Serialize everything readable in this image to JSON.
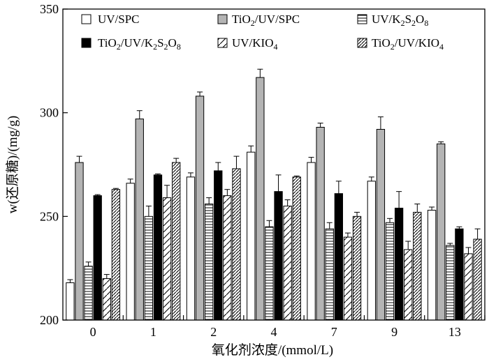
{
  "chart_data": {
    "type": "bar",
    "title": "",
    "xlabel": "氧化剂浓度/(mmol/L)",
    "ylabel": "w(还原糖)/(mg/g)",
    "ylim": [
      200,
      350
    ],
    "yticks": [
      200,
      250,
      300,
      350
    ],
    "categories": [
      "0",
      "1",
      "2",
      "4",
      "7",
      "9",
      "13"
    ],
    "legend_placement": "top",
    "series": [
      {
        "name": "UV/SPC",
        "key": "uv_spc",
        "values": [
          218,
          266,
          269,
          281,
          276,
          267,
          253
        ],
        "errors": [
          1.5,
          2,
          2,
          3,
          2.5,
          2,
          1.5
        ]
      },
      {
        "name": "TiO2/UV/SPC",
        "key": "tio2_uv_spc",
        "values": [
          276,
          297,
          308,
          317,
          293,
          292,
          285
        ],
        "errors": [
          3,
          4,
          2,
          4,
          2,
          6,
          1
        ]
      },
      {
        "name": "UV/K2S2O8",
        "key": "uv_k2s2o8",
        "values": [
          226,
          250,
          256,
          245,
          244,
          247,
          236
        ],
        "errors": [
          2,
          5,
          3,
          3,
          3,
          2,
          1
        ]
      },
      {
        "name": "TiO2/UV/K2S2O8",
        "key": "tio2_uv_k2s2o8",
        "values": [
          260,
          270,
          272,
          262,
          261,
          254,
          244
        ],
        "errors": [
          0.5,
          0.5,
          4,
          8,
          6,
          8,
          1
        ]
      },
      {
        "name": "UV/KIO4",
        "key": "uv_kio4",
        "values": [
          220,
          259,
          260,
          255,
          240,
          234,
          232
        ],
        "errors": [
          2,
          6,
          3,
          3,
          2,
          4,
          3
        ]
      },
      {
        "name": "TiO2/UV/KIO4",
        "key": "tio2_uv_kio4",
        "values": [
          263,
          276,
          273,
          269,
          250,
          252,
          239
        ],
        "errors": [
          0.5,
          2,
          6,
          0.5,
          2,
          4,
          5
        ]
      }
    ]
  }
}
